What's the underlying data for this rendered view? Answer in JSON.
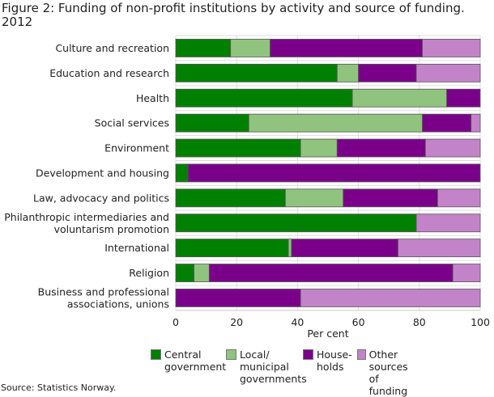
{
  "chart_data": {
    "type": "bar",
    "orientation": "horizontal",
    "stacked": true,
    "title": "Figure 2: Funding of non-profit institutions by activity and source of funding.\n2012",
    "xlabel": "Per cent",
    "xlim": [
      0,
      100
    ],
    "xticks": [
      "0",
      "20",
      "40",
      "60",
      "80",
      "100"
    ],
    "grid": true,
    "legend_position": "bottom",
    "categories": [
      "Culture and recreation",
      "Education and research",
      "Health",
      "Social services",
      "Environment",
      "Development and housing",
      "Law, advocacy and politics",
      "Philanthropic intermediaries and\nvoluntarism promotion",
      "International",
      "Religion",
      "Business and professional\nassociations, unions"
    ],
    "series": [
      {
        "name": "Central\ngovernment",
        "color": "#008000",
        "values": [
          18,
          53,
          58,
          24,
          41,
          4,
          36,
          79,
          37,
          6,
          0
        ]
      },
      {
        "name": "Local/\nmunicipal\ngovernments",
        "color": "#90c47e",
        "values": [
          13,
          7,
          31,
          57,
          12,
          0,
          19,
          0,
          1,
          5,
          0
        ]
      },
      {
        "name": "House-\nholds",
        "color": "#7a0089",
        "values": [
          50,
          19,
          11,
          16,
          29,
          96,
          31,
          0,
          35,
          80,
          41
        ]
      },
      {
        "name": "Other\nsources of\nfunding",
        "color": "#c383c8",
        "values": [
          19,
          21,
          0,
          3,
          18,
          0,
          14,
          21,
          27,
          9,
          59
        ]
      }
    ]
  },
  "source": "Source: Statistics Norway."
}
